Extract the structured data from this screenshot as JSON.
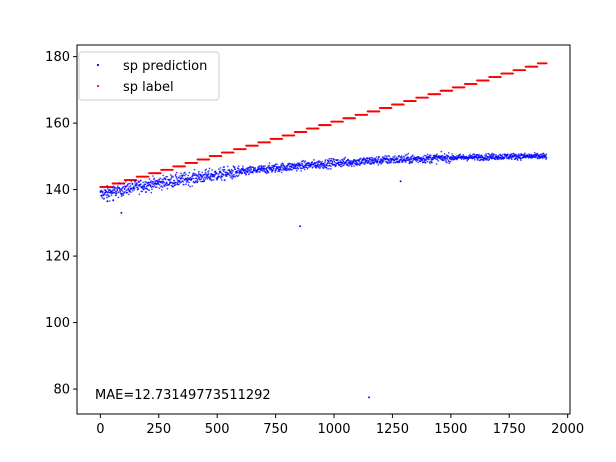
{
  "chart_data": {
    "type": "scatter",
    "title": "",
    "xlabel": "",
    "ylabel": "",
    "xlim": [
      -100,
      2010
    ],
    "ylim": [
      72.5,
      183.5
    ],
    "xticks": [
      0,
      250,
      500,
      750,
      1000,
      1250,
      1500,
      1750,
      2000
    ],
    "yticks": [
      80,
      100,
      120,
      140,
      160,
      180
    ],
    "grid": false,
    "legend_position": "upper-left",
    "annotation": "MAE=12.73149773511292",
    "colors": {
      "prediction": "#0000ff",
      "label": "#ff0000"
    },
    "series": [
      {
        "name": "sp prediction",
        "kind": "noisy_trend",
        "x_start": 0,
        "x_end": 1910,
        "x_step": 1,
        "trend_points": [
          [
            0,
            138.5
          ],
          [
            125,
            140.5
          ],
          [
            250,
            142
          ],
          [
            500,
            144.5
          ],
          [
            750,
            146.5
          ],
          [
            1000,
            148
          ],
          [
            1250,
            149
          ],
          [
            1500,
            149.6
          ],
          [
            1750,
            150
          ],
          [
            1910,
            150
          ]
        ],
        "spread": 1.4,
        "outliers": [
          [
            855,
            129
          ],
          [
            1150,
            77.5
          ],
          [
            1285,
            142.5
          ],
          [
            90,
            133
          ],
          [
            30,
            136.5
          ],
          [
            55,
            136.8
          ]
        ]
      },
      {
        "name": "sp label",
        "kind": "step",
        "x_start": 0,
        "x_end": 1910,
        "step_width": 52,
        "y_start": 140.8,
        "y_end": 178
      }
    ]
  }
}
